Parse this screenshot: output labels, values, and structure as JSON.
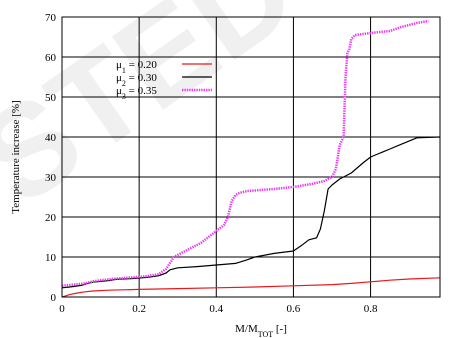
{
  "watermark": "STED",
  "chart_data": {
    "type": "line",
    "xlabel": "M/M",
    "xlabel_sub": "TOT",
    "xlabel_suffix": " [-]",
    "ylabel": "Temperature increase [%]",
    "xlim": [
      0,
      0.98
    ],
    "ylim": [
      0,
      70
    ],
    "xticks": [
      0,
      0.2,
      0.4,
      0.6,
      0.8
    ],
    "yticks": [
      0,
      10,
      20,
      30,
      40,
      50,
      60,
      70
    ],
    "grid": true,
    "legend_position": "top-left",
    "series": [
      {
        "name_base": "μ",
        "name_sub": "1",
        "name_value": " = 0.20",
        "color": "#e8191c",
        "style": "solid",
        "x": [
          0,
          0.01,
          0.02,
          0.04,
          0.06,
          0.08,
          0.12,
          0.2,
          0.3,
          0.4,
          0.5,
          0.6,
          0.7,
          0.75,
          0.8,
          0.85,
          0.9,
          0.98
        ],
        "y": [
          0,
          0.3,
          0.6,
          1.0,
          1.3,
          1.5,
          1.7,
          1.9,
          2.1,
          2.3,
          2.5,
          2.8,
          3.1,
          3.4,
          3.8,
          4.2,
          4.5,
          4.8
        ]
      },
      {
        "name_base": "μ",
        "name_sub": "2",
        "name_value": " = 0.30",
        "color": "#000000",
        "style": "solid",
        "x": [
          0,
          0.02,
          0.05,
          0.06,
          0.08,
          0.1,
          0.12,
          0.14,
          0.18,
          0.22,
          0.25,
          0.27,
          0.28,
          0.3,
          0.35,
          0.4,
          0.45,
          0.48,
          0.5,
          0.55,
          0.6,
          0.62,
          0.64,
          0.66,
          0.67,
          0.68,
          0.69,
          0.7,
          0.72,
          0.75,
          0.78,
          0.8,
          0.85,
          0.88,
          0.92,
          0.98
        ],
        "y": [
          2.3,
          2.5,
          2.9,
          3.2,
          3.7,
          3.9,
          4.1,
          4.4,
          4.6,
          4.9,
          5.3,
          6.0,
          6.8,
          7.3,
          7.6,
          8.0,
          8.4,
          9.3,
          10.0,
          10.9,
          11.5,
          12.8,
          14.3,
          14.8,
          17.0,
          21.5,
          27.0,
          28.0,
          29.5,
          31.0,
          33.5,
          35.0,
          37.0,
          38.2,
          39.8,
          40.0
        ]
      },
      {
        "name_base": "μ",
        "name_sub": "3",
        "name_value": " = 0.35",
        "color": "#ea3cf0",
        "style": "dotted",
        "x": [
          0,
          0.04,
          0.06,
          0.08,
          0.1,
          0.14,
          0.18,
          0.22,
          0.25,
          0.27,
          0.28,
          0.29,
          0.3,
          0.32,
          0.34,
          0.36,
          0.38,
          0.4,
          0.42,
          0.43,
          0.44,
          0.45,
          0.46,
          0.48,
          0.55,
          0.6,
          0.65,
          0.68,
          0.7,
          0.71,
          0.72,
          0.73,
          0.735,
          0.74,
          0.745,
          0.75,
          0.76,
          0.8,
          0.85,
          0.88,
          0.9,
          0.92,
          0.95
        ],
        "y": [
          2.8,
          3.2,
          3.4,
          3.9,
          4.2,
          4.6,
          4.9,
          5.2,
          5.7,
          7.0,
          8.5,
          10.0,
          10.5,
          11.5,
          12.5,
          13.5,
          15.0,
          16.5,
          18.0,
          20.0,
          24.0,
          25.5,
          26.0,
          26.5,
          27.0,
          27.5,
          28.3,
          29.0,
          30.0,
          32.0,
          38.0,
          40.0,
          55.0,
          61.0,
          62.0,
          64.5,
          65.5,
          66.0,
          66.5,
          67.5,
          68.0,
          68.5,
          69.0
        ]
      }
    ]
  }
}
